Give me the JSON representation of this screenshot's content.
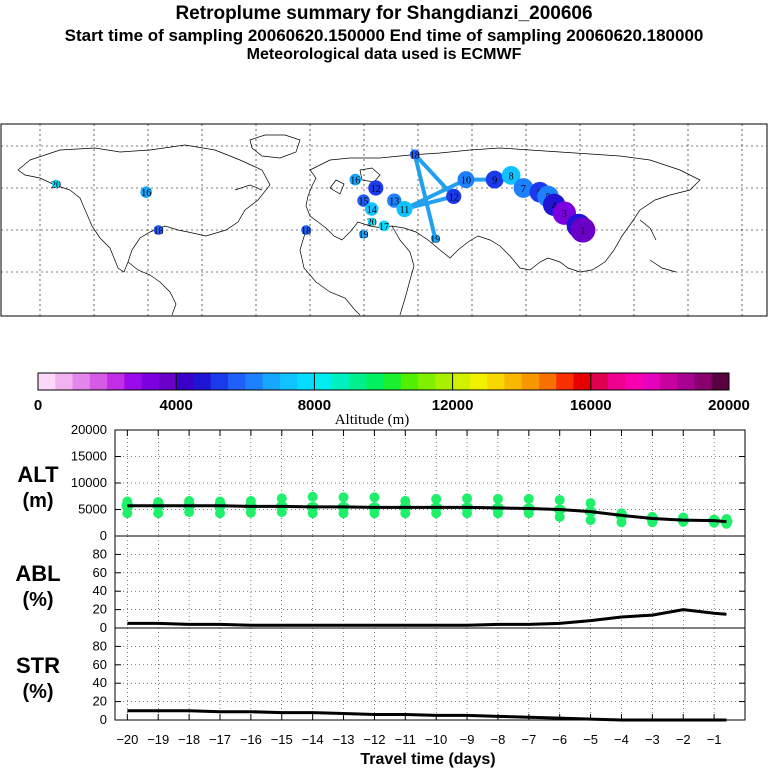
{
  "header": {
    "title": "Retroplume summary for Shangdianzi_200606",
    "sampling": "Start time of sampling 20060620.150000     End time of sampling 20060620.180000",
    "met": "Meteorological data used is ECMWF"
  },
  "colors": {
    "scale": [
      "#fbd8f8",
      "#f1b1f1",
      "#e487ec",
      "#d55be6",
      "#c22de6",
      "#9b0aea",
      "#7a00e0",
      "#6a00c8",
      "#3a00c8",
      "#1f14d6",
      "#1a3aec",
      "#2060f8",
      "#1c80ff",
      "#18a6ff",
      "#10c2ff",
      "#06dcff",
      "#00ecf0",
      "#00f0c0",
      "#00f090",
      "#00f060",
      "#18f030",
      "#50f000",
      "#80f000",
      "#a8f000",
      "#d0f000",
      "#f0f000",
      "#f8d800",
      "#f8b800",
      "#f89800",
      "#f87000",
      "#f83000",
      "#e80000",
      "#e00050",
      "#f00090",
      "#f800b0",
      "#e800c0",
      "#c800a0",
      "#a80090",
      "#880070",
      "#580040"
    ],
    "line": "#000000",
    "alt_points": "#1ef06a",
    "track": "#22a0f0"
  },
  "chart_data": [
    {
      "type": "map-scatter",
      "name": "retroplume trajectory map",
      "points": [
        {
          "day": 20,
          "lon": -140,
          "lat": 51
        },
        {
          "day": 20,
          "lon": 14,
          "lat": 42
        },
        {
          "day": 19,
          "lon": 10,
          "lat": 39
        },
        {
          "day": 19,
          "lon": 45,
          "lat": 38
        },
        {
          "day": 18,
          "lon": -18,
          "lat": 40
        },
        {
          "day": 18,
          "lon": 35,
          "lat": 58
        },
        {
          "day": 18,
          "lon": -90,
          "lat": 40
        },
        {
          "day": 17,
          "lon": 20,
          "lat": 41
        },
        {
          "day": 16,
          "lon": 6,
          "lat": 52
        },
        {
          "day": 16,
          "lon": -96,
          "lat": 49
        },
        {
          "day": 15,
          "lon": 10,
          "lat": 47
        },
        {
          "day": 14,
          "lon": 14,
          "lat": 45
        },
        {
          "day": 13,
          "lon": 25,
          "lat": 47
        },
        {
          "day": 12,
          "lon": 16,
          "lat": 50
        },
        {
          "day": 12,
          "lon": 54,
          "lat": 48
        },
        {
          "day": 11,
          "lon": 30,
          "lat": 45
        },
        {
          "day": 10,
          "lon": 60,
          "lat": 52
        },
        {
          "day": 9,
          "lon": 74,
          "lat": 52
        },
        {
          "day": 8,
          "lon": 82,
          "lat": 53
        },
        {
          "day": 7,
          "lon": 88,
          "lat": 50
        },
        {
          "day": 6,
          "lon": 96,
          "lat": 49
        },
        {
          "day": 5,
          "lon": 100,
          "lat": 48
        },
        {
          "day": 4,
          "lon": 103,
          "lat": 46
        },
        {
          "day": 3,
          "lon": 108,
          "lat": 44
        },
        {
          "day": 2,
          "lon": 115,
          "lat": 41
        },
        {
          "day": 1,
          "lon": 117,
          "lat": 40
        }
      ],
      "point_labels": [
        "13",
        "14",
        "15",
        "16",
        "17",
        "18",
        "19",
        "20",
        "1",
        "2",
        "3",
        "4",
        "5",
        "6",
        "7",
        "8",
        "9",
        "10",
        "11",
        "12",
        "13",
        "14",
        "15",
        "16",
        "17",
        "18",
        "19",
        "20"
      ]
    },
    {
      "type": "colorbar",
      "name": "altitude color scale",
      "title": "Altitude (m)",
      "range": [
        0,
        20000
      ],
      "tick_labels": [
        "0",
        "4000",
        "8000",
        "12000",
        "16000",
        "20000"
      ]
    },
    {
      "type": "line",
      "name": "ALT",
      "ylabel_top": "ALT",
      "ylabel_unit": "(m)",
      "ylim": [
        0,
        20000
      ],
      "yticks": [
        "20000",
        "15000",
        "10000",
        "5000",
        "0"
      ],
      "x": [
        -20,
        -19,
        -18,
        -17,
        -16,
        -15,
        -14,
        -13,
        -12,
        -11,
        -10,
        -9,
        -8,
        -7,
        -6,
        -5,
        -4,
        -3,
        -2,
        -1,
        -0.6
      ],
      "values": [
        5700,
        5700,
        5700,
        5700,
        5600,
        5600,
        5500,
        5500,
        5400,
        5400,
        5400,
        5400,
        5300,
        5200,
        5000,
        4600,
        3900,
        3300,
        3000,
        2900,
        2700
      ],
      "spread_lo": [
        4300,
        4300,
        4500,
        4300,
        4400,
        4500,
        4300,
        4300,
        4300,
        4300,
        4300,
        4300,
        4300,
        4300,
        3600,
        3000,
        2600,
        2600,
        2700,
        2500,
        2300
      ],
      "spread_hi": [
        6500,
        6400,
        6600,
        6500,
        6600,
        7100,
        7400,
        7300,
        7300,
        6600,
        7000,
        7100,
        7000,
        7000,
        6800,
        6200,
        4300,
        3600,
        3500,
        3100,
        3200
      ]
    },
    {
      "type": "line",
      "name": "ABL",
      "ylabel_top": "ABL",
      "ylabel_unit": "(%)",
      "ylim": [
        0,
        100
      ],
      "yticks": [
        "80",
        "60",
        "40",
        "20",
        "0"
      ],
      "x": [
        -20,
        -19,
        -18,
        -17,
        -16,
        -15,
        -14,
        -13,
        -12,
        -11,
        -10,
        -9,
        -8,
        -7,
        -6,
        -5,
        -4,
        -3,
        -2,
        -1,
        -0.6
      ],
      "values": [
        5,
        5,
        4,
        4,
        3,
        3,
        3,
        3,
        3,
        3,
        3,
        3,
        4,
        4,
        5,
        8,
        12,
        14,
        20,
        16,
        15
      ]
    },
    {
      "type": "line",
      "name": "STR",
      "ylabel_top": "STR",
      "ylabel_unit": "(%)",
      "ylim": [
        0,
        100
      ],
      "yticks": [
        "80",
        "60",
        "40",
        "20",
        "0"
      ],
      "x": [
        -20,
        -19,
        -18,
        -17,
        -16,
        -15,
        -14,
        -13,
        -12,
        -11,
        -10,
        -9,
        -8,
        -7,
        -6,
        -5,
        -4,
        -3,
        -2,
        -1,
        -0.6
      ],
      "values": [
        10,
        10,
        10,
        9,
        9,
        8,
        8,
        7,
        6,
        6,
        5,
        5,
        4,
        3,
        2,
        1,
        0,
        0,
        0,
        0,
        0
      ]
    },
    {
      "type": "axis",
      "name": "travel time axis",
      "xlabel": "Travel time (days)",
      "xticks": [
        "-20",
        "-19",
        "-18",
        "-17",
        "-16",
        "-15",
        "-14",
        "-13",
        "-12",
        "-11",
        "-10",
        "-9",
        "-8",
        "-7",
        "-6",
        "-5",
        "-4",
        "-3",
        "-2",
        "-1"
      ]
    }
  ]
}
